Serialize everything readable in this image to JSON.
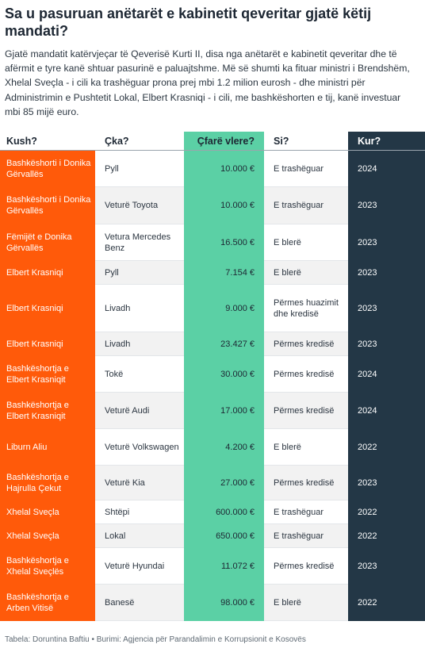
{
  "title": "Sa u pasuruan anëtarët e kabinetit qeveritar gjatë këtij mandati?",
  "description": "Gjatë mandatit katërvjeçar të Qeverisë Kurti II, disa nga anëtarët e kabinetit qeveritar dhe të afërmit e tyre kanë shtuar pasurinë e paluajtshme. Më së shumti ka fituar ministri i Brendshëm, Xhelal Sveçla - i cili ka trashëguar prona prej mbi 1.2 milion eurosh - dhe ministri për Administrimin e Pushtetit Lokal, Elbert Krasniqi - i cili, me bashkëshorten e tij, kanë investuar mbi 85 mijë euro.",
  "footer": "Tabela: Doruntina Baftiu • Burimi: Agjencia për Parandalimin e Korrupsionit e Kosovës",
  "colors": {
    "orange": "#ff5a0a",
    "green": "#5bd0a5",
    "navy": "#233746",
    "stripe": "#f2f2f2"
  },
  "chart_data": {
    "type": "table",
    "columns": [
      "Kush?",
      "Çka?",
      "Çfarë vlere?",
      "Si?",
      "Kur?"
    ],
    "rows": [
      [
        "Bashkëshorti i Donika Gërvallës",
        "Pyll",
        "10.000 €",
        "E trashëguar",
        "2024"
      ],
      [
        "Bashkëshorti i Donika Gërvallës",
        "Veturë Toyota",
        "10.000 €",
        "E trashëguar",
        "2023"
      ],
      [
        "Fëmijët e Donika Gërvallës",
        "Vetura Mercedes Benz",
        "16.500 €",
        "E blerë",
        "2023"
      ],
      [
        "Elbert Krasniqi",
        "Pyll",
        "7.154 €",
        "E blerë",
        "2023"
      ],
      [
        "Elbert Krasniqi",
        "Livadh",
        "9.000 €",
        "Përmes huazimit dhe kredisë",
        "2023"
      ],
      [
        "Elbert Krasniqi",
        "Livadh",
        "23.427 €",
        "Përmes kredisë",
        "2023"
      ],
      [
        "Bashkëshortja e Elbert Krasniqit",
        "Tokë",
        "30.000 €",
        "Përmes kredisë",
        "2024"
      ],
      [
        "Bashkëshortja e Elbert Krasniqit",
        "Veturë Audi",
        "17.000 €",
        "Përmes kredisë",
        "2024"
      ],
      [
        "Liburn Aliu",
        "Veturë Volkswagen",
        "4.200 €",
        "E blerë",
        "2022"
      ],
      [
        "Bashkëshortja e Hajrulla Çekut",
        "Veturë Kia",
        "27.000 €",
        "Përmes kredisë",
        "2023"
      ],
      [
        "Xhelal Sveçla",
        "Shtëpi",
        "600.000 €",
        "E trashëguar",
        "2022"
      ],
      [
        "Xhelal Sveçla",
        "Lokal",
        "650.000 €",
        "E trashëguar",
        "2022"
      ],
      [
        "Bashkëshortja e Xhelal Sveçlës",
        "Veturë Hyundai",
        "11.072 €",
        "Përmes kredisë",
        "2023"
      ],
      [
        "Bashkëshortja e Arben Vitisë",
        "Banesë",
        "98.000 €",
        "E blerë",
        "2022"
      ]
    ]
  }
}
